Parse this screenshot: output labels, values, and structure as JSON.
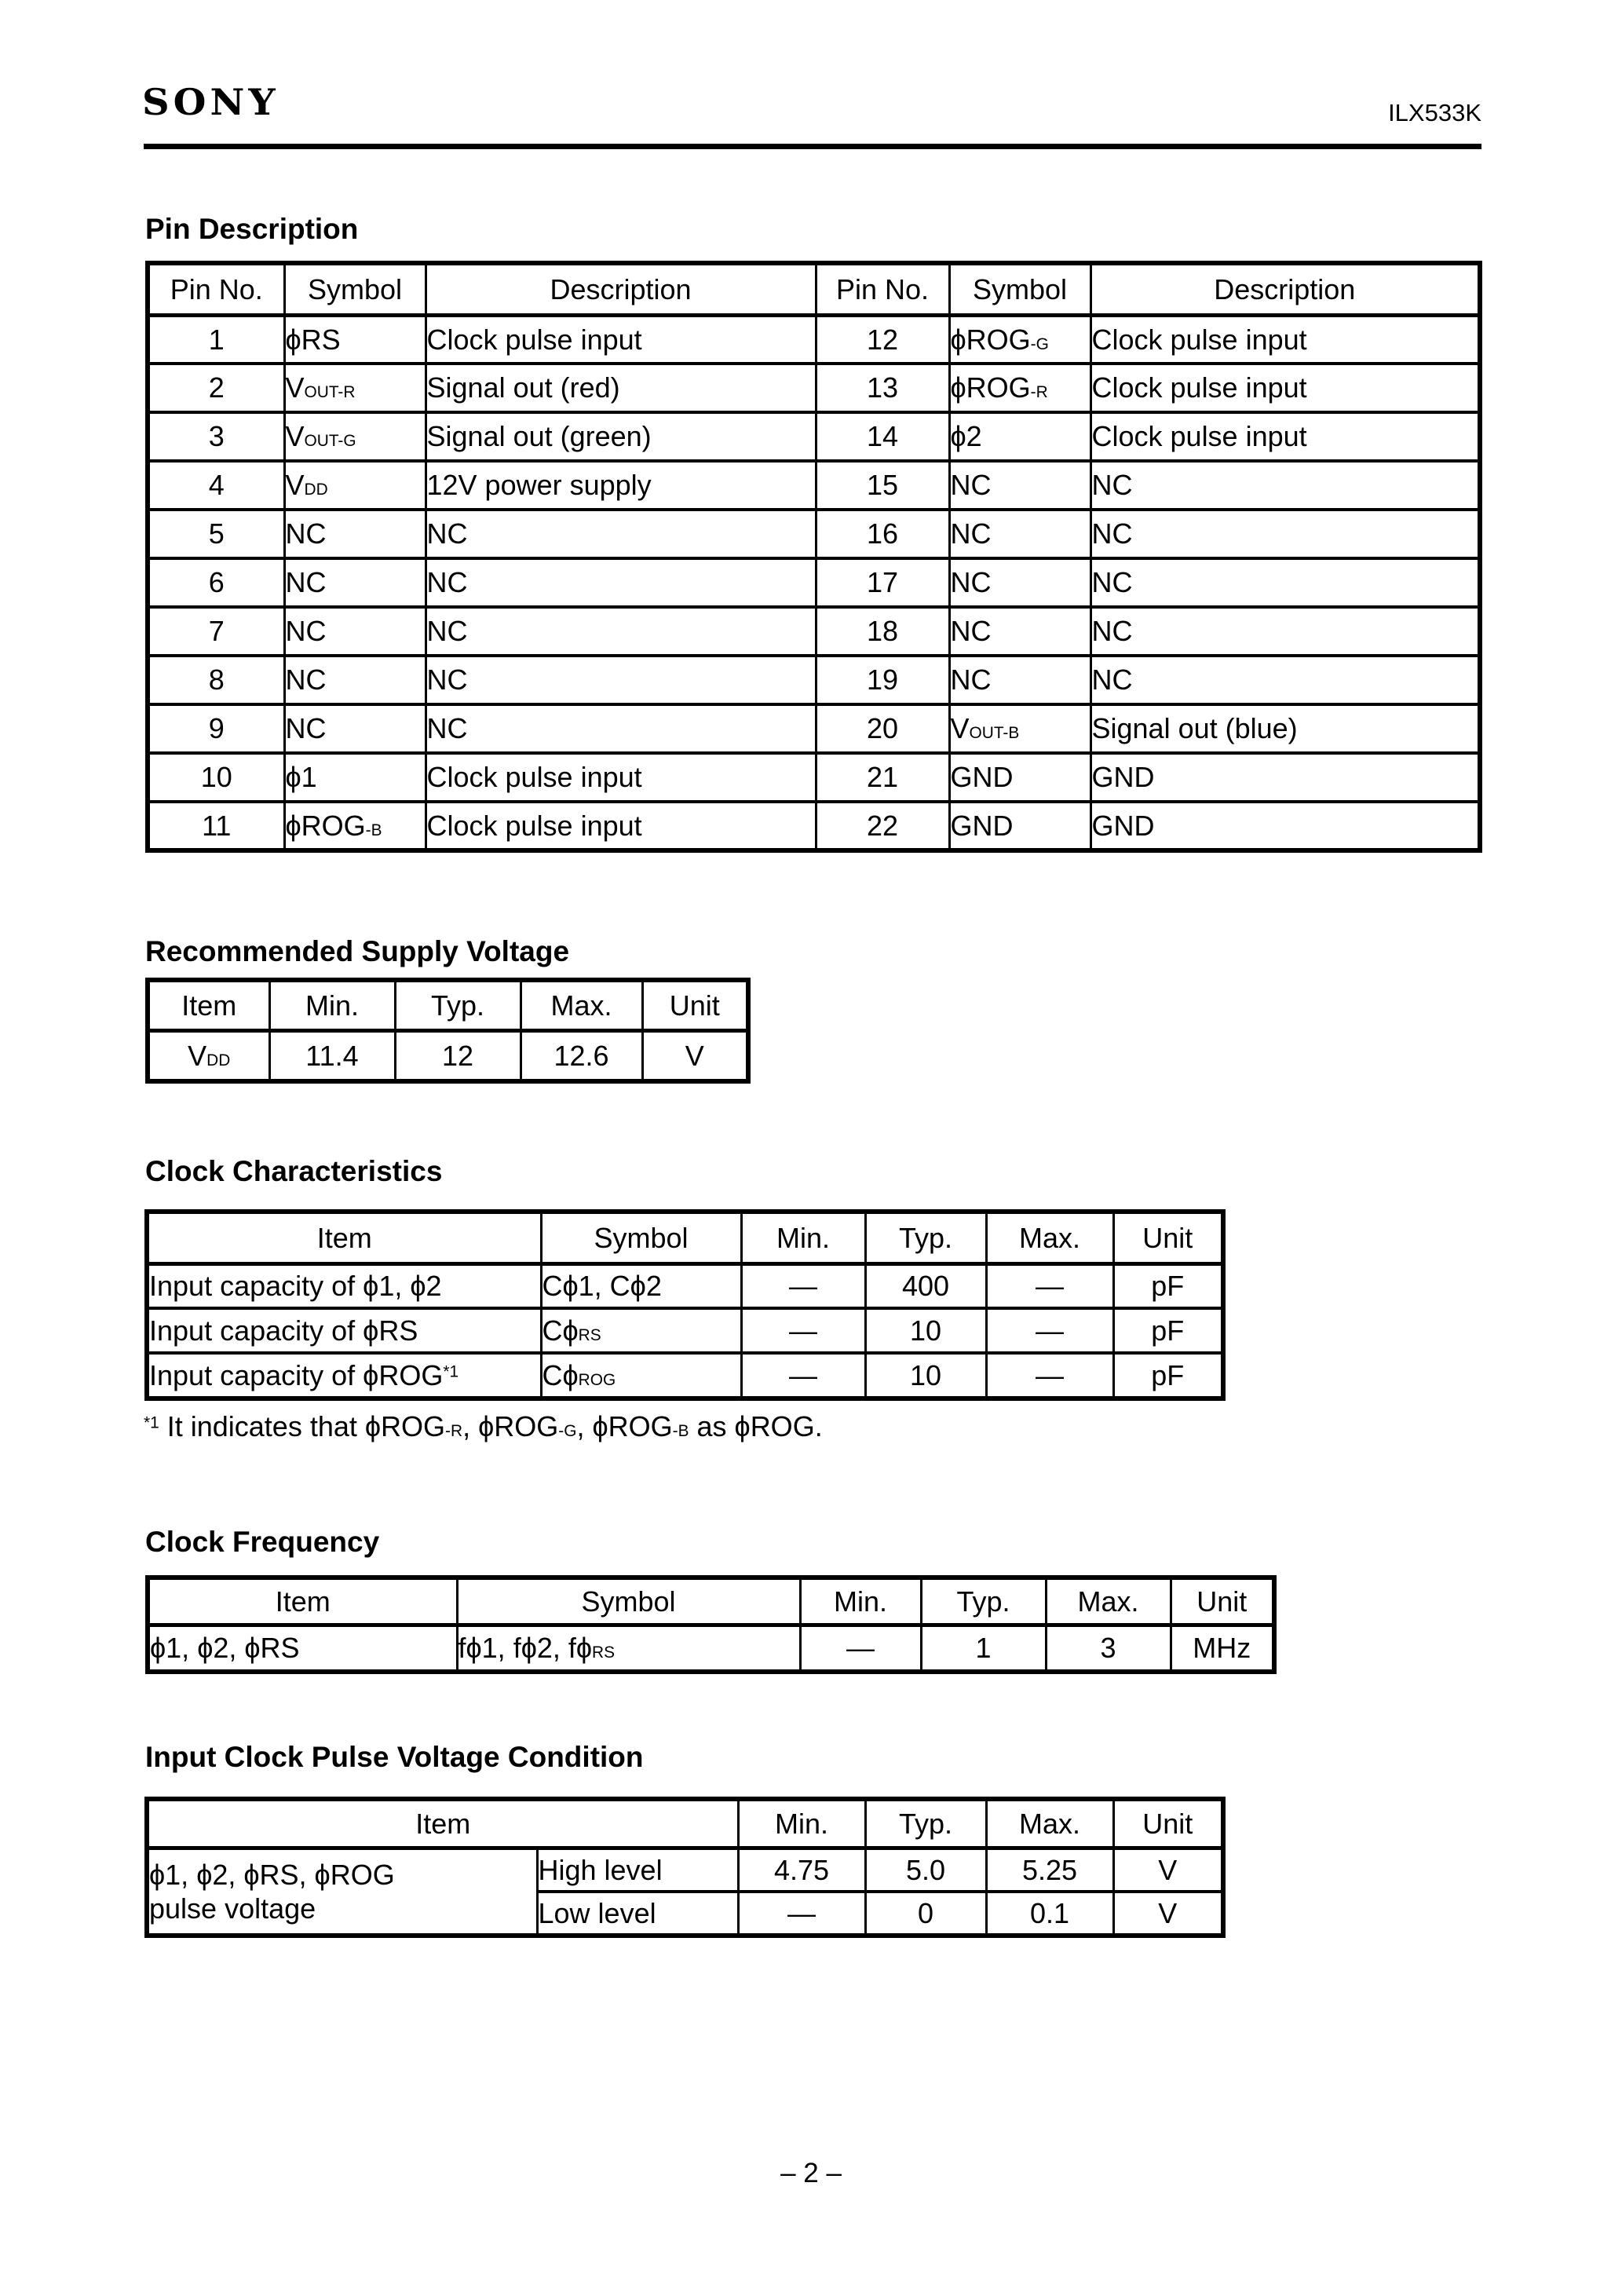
{
  "header": {
    "brand": "SONY",
    "part_number": "ILX533K"
  },
  "pin_description": {
    "title": "Pin Description",
    "columns": [
      "Pin No.",
      "Symbol",
      "Description"
    ],
    "left_rows": [
      {
        "pin": "1",
        "symbol": [
          [
            "ϕRS",
            0
          ]
        ],
        "desc": "Clock pulse input"
      },
      {
        "pin": "2",
        "symbol": [
          [
            "V",
            0
          ],
          [
            "OUT-R",
            1
          ]
        ],
        "desc": "Signal out (red)"
      },
      {
        "pin": "3",
        "symbol": [
          [
            "V",
            0
          ],
          [
            "OUT-G",
            1
          ]
        ],
        "desc": "Signal out (green)"
      },
      {
        "pin": "4",
        "symbol": [
          [
            "V",
            0
          ],
          [
            "DD",
            1
          ]
        ],
        "desc": "12V power supply"
      },
      {
        "pin": "5",
        "symbol": [
          [
            "NC",
            0
          ]
        ],
        "desc": "NC"
      },
      {
        "pin": "6",
        "symbol": [
          [
            "NC",
            0
          ]
        ],
        "desc": "NC"
      },
      {
        "pin": "7",
        "symbol": [
          [
            "NC",
            0
          ]
        ],
        "desc": "NC"
      },
      {
        "pin": "8",
        "symbol": [
          [
            "NC",
            0
          ]
        ],
        "desc": "NC"
      },
      {
        "pin": "9",
        "symbol": [
          [
            "NC",
            0
          ]
        ],
        "desc": "NC"
      },
      {
        "pin": "10",
        "symbol": [
          [
            "ϕ1",
            0
          ]
        ],
        "desc": "Clock pulse input"
      },
      {
        "pin": "11",
        "symbol": [
          [
            "ϕROG",
            0
          ],
          [
            "-B",
            1
          ]
        ],
        "desc": "Clock pulse input"
      }
    ],
    "right_rows": [
      {
        "pin": "12",
        "symbol": [
          [
            "ϕROG",
            0
          ],
          [
            "-G",
            1
          ]
        ],
        "desc": "Clock pulse input"
      },
      {
        "pin": "13",
        "symbol": [
          [
            "ϕROG",
            0
          ],
          [
            "-R",
            1
          ]
        ],
        "desc": "Clock pulse input"
      },
      {
        "pin": "14",
        "symbol": [
          [
            "ϕ2",
            0
          ]
        ],
        "desc": "Clock pulse input"
      },
      {
        "pin": "15",
        "symbol": [
          [
            "NC",
            0
          ]
        ],
        "desc": "NC"
      },
      {
        "pin": "16",
        "symbol": [
          [
            "NC",
            0
          ]
        ],
        "desc": "NC"
      },
      {
        "pin": "17",
        "symbol": [
          [
            "NC",
            0
          ]
        ],
        "desc": "NC"
      },
      {
        "pin": "18",
        "symbol": [
          [
            "NC",
            0
          ]
        ],
        "desc": "NC"
      },
      {
        "pin": "19",
        "symbol": [
          [
            "NC",
            0
          ]
        ],
        "desc": "NC"
      },
      {
        "pin": "20",
        "symbol": [
          [
            "V",
            0
          ],
          [
            "OUT-B",
            1
          ]
        ],
        "desc": "Signal out (blue)"
      },
      {
        "pin": "21",
        "symbol": [
          [
            "GND",
            0
          ]
        ],
        "desc": "GND"
      },
      {
        "pin": "22",
        "symbol": [
          [
            "GND",
            0
          ]
        ],
        "desc": "GND"
      }
    ]
  },
  "supply_voltage": {
    "title": "Recommended Supply Voltage",
    "columns": [
      "Item",
      "Min.",
      "Typ.",
      "Max.",
      "Unit"
    ],
    "rows": [
      {
        "item": [
          [
            "V",
            0
          ],
          [
            "DD",
            1
          ]
        ],
        "min": "11.4",
        "typ": "12",
        "max": "12.6",
        "unit": "V"
      }
    ]
  },
  "clock_characteristics": {
    "title": "Clock Characteristics",
    "columns": [
      "Item",
      "Symbol",
      "Min.",
      "Typ.",
      "Max.",
      "Unit"
    ],
    "rows": [
      {
        "item": [
          [
            "Input capacity of ϕ1, ϕ2",
            0
          ]
        ],
        "symbol": [
          [
            "Cϕ1, Cϕ2",
            0
          ]
        ],
        "min": "—",
        "typ": "400",
        "max": "—",
        "unit": "pF"
      },
      {
        "item": [
          [
            "Input capacity of ϕRS",
            0
          ]
        ],
        "symbol": [
          [
            "Cϕ",
            0
          ],
          [
            "RS",
            1
          ]
        ],
        "min": "—",
        "typ": "10",
        "max": "—",
        "unit": "pF"
      },
      {
        "item": [
          [
            "Input capacity of ϕROG",
            0
          ],
          [
            "*1",
            2
          ]
        ],
        "symbol": [
          [
            "Cϕ",
            0
          ],
          [
            "ROG",
            1
          ]
        ],
        "min": "—",
        "typ": "10",
        "max": "—",
        "unit": "pF"
      }
    ],
    "footnote": [
      [
        "*1",
        2
      ],
      [
        " It indicates that ϕROG",
        0
      ],
      [
        "-R",
        1
      ],
      [
        ", ϕROG",
        0
      ],
      [
        "-G",
        1
      ],
      [
        ", ϕROG",
        0
      ],
      [
        "-B",
        1
      ],
      [
        " as ϕROG.",
        0
      ]
    ]
  },
  "clock_frequency": {
    "title": "Clock Frequency",
    "columns": [
      "Item",
      "Symbol",
      "Min.",
      "Typ.",
      "Max.",
      "Unit"
    ],
    "rows": [
      {
        "item": [
          [
            "ϕ1, ϕ2, ϕRS",
            0
          ]
        ],
        "symbol": [
          [
            "fϕ1, fϕ2, fϕ",
            0
          ],
          [
            "RS",
            1
          ]
        ],
        "min": "—",
        "typ": "1",
        "max": "3",
        "unit": "MHz"
      }
    ]
  },
  "pulse_voltage": {
    "title": "Input Clock Pulse Voltage Condition",
    "columns": [
      "Item",
      "Min.",
      "Typ.",
      "Max.",
      "Unit"
    ],
    "item_line1": [
      [
        "ϕ1, ϕ2, ϕRS, ϕROG",
        0
      ]
    ],
    "item_line2": "pulse voltage",
    "rows": [
      {
        "level": "High level",
        "min": "4.75",
        "typ": "5.0",
        "max": "5.25",
        "unit": "V"
      },
      {
        "level": "Low level",
        "min": "—",
        "typ": "0",
        "max": "0.1",
        "unit": "V"
      }
    ]
  },
  "footer": {
    "page_number": "– 2 –"
  }
}
